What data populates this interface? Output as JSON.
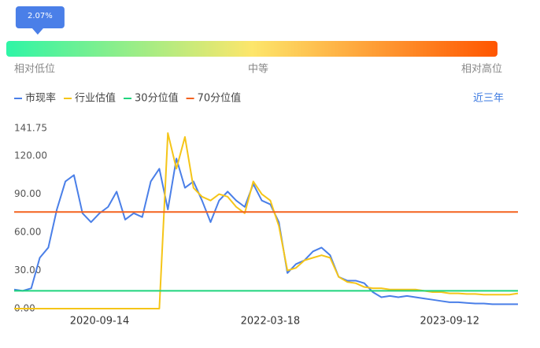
{
  "chart_data": {
    "type": "line",
    "marker": {
      "value": 2.07,
      "label": "2.07%"
    },
    "scale_labels": [
      "相对低位",
      "中等",
      "相对高位"
    ],
    "range_label": "近三年",
    "categories": [
      null,
      null,
      null,
      null,
      null,
      null,
      null,
      null,
      null,
      null,
      "2020-09-14",
      null,
      null,
      null,
      null,
      null,
      null,
      null,
      null,
      null,
      null,
      null,
      null,
      null,
      null,
      null,
      null,
      null,
      null,
      null,
      "2022-03-18",
      null,
      null,
      null,
      null,
      null,
      null,
      null,
      null,
      null,
      null,
      null,
      null,
      null,
      null,
      null,
      null,
      null,
      null,
      null,
      null,
      "2023-09-12",
      null,
      null,
      null,
      null,
      null,
      null,
      null,
      null
    ],
    "series": [
      {
        "name": "市现率",
        "color": "#4a7fe8",
        "values": [
          15,
          14,
          16,
          40,
          48,
          78,
          100,
          105,
          75,
          68,
          75,
          80,
          92,
          70,
          75,
          72,
          100,
          110,
          78,
          118,
          95,
          100,
          85,
          68,
          85,
          92,
          85,
          80,
          98,
          85,
          82,
          68,
          28,
          35,
          38,
          45,
          48,
          42,
          25,
          22,
          22,
          20,
          13,
          9,
          10,
          9,
          10,
          9,
          8,
          7,
          6,
          5,
          5,
          4.5,
          4,
          4,
          3.5,
          3.5,
          3.5,
          3.5
        ]
      },
      {
        "name": "行业估值",
        "color": "#f5c518",
        "values": [
          0,
          0,
          0,
          0,
          0,
          0,
          0,
          0,
          0,
          0,
          0,
          0,
          0,
          0,
          0,
          0,
          0,
          0,
          138,
          110,
          135,
          95,
          88,
          85,
          90,
          88,
          80,
          75,
          100,
          90,
          85,
          65,
          30,
          32,
          38,
          40,
          42,
          40,
          25,
          21,
          20,
          17,
          16,
          16,
          15,
          15,
          15,
          15,
          14,
          13,
          13,
          12,
          12,
          11.5,
          11.5,
          11,
          11,
          11,
          11,
          12
        ]
      },
      {
        "name": "30分位值",
        "color": "#1fd47d",
        "value": 14
      },
      {
        "name": "70分位值",
        "color": "#f4621f",
        "value": 76
      }
    ],
    "ylim": [
      0,
      141.75
    ],
    "yticks": [
      {
        "value": 0,
        "label": "0.00"
      },
      {
        "value": 30,
        "label": "30.00"
      },
      {
        "value": 60,
        "label": "60.00"
      },
      {
        "value": 90,
        "label": "90.00"
      },
      {
        "value": 120,
        "label": "120.00"
      },
      141.75
    ],
    "grid": false
  }
}
